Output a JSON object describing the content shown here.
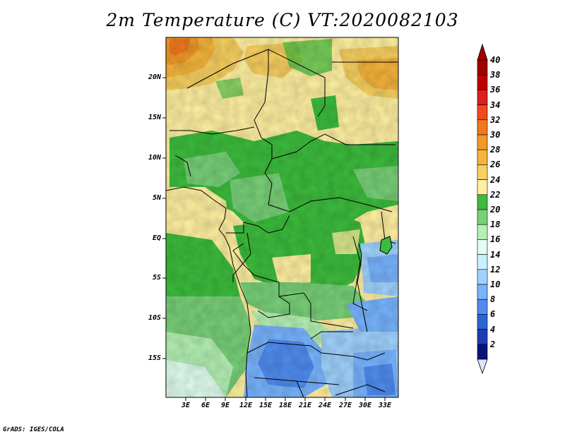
{
  "title": "2m Temperature (C) VT:2020082103",
  "footer": "GrADS: IGES/COLA",
  "map": {
    "lat_labels": [
      "20N",
      "15N",
      "10N",
      "5N",
      "EQ",
      "5S",
      "10S",
      "15S"
    ],
    "lon_labels": [
      "3E",
      "6E",
      "9E",
      "12E",
      "15E",
      "18E",
      "21E",
      "24E",
      "27E",
      "30E",
      "33E"
    ]
  },
  "colorbar": {
    "labels": [
      "40",
      "38",
      "36",
      "34",
      "32",
      "30",
      "28",
      "26",
      "24",
      "22",
      "20",
      "18",
      "16",
      "14",
      "12",
      "10",
      "8",
      "6",
      "4",
      "2"
    ],
    "colors": [
      "#a00000",
      "#c00000",
      "#e01e1e",
      "#f04b1e",
      "#f0781e",
      "#f09a28",
      "#f5b43c",
      "#f8d060",
      "#fff0a0",
      "#3cbc3c",
      "#78d078",
      "#b4f0b4",
      "#e1fff0",
      "#c8f0ff",
      "#a0d2ff",
      "#78b4ff",
      "#508cf0",
      "#2864d2",
      "#1e3cb4",
      "#0a1478"
    ],
    "over_color": "#a00000",
    "under_color": "#e1e1fa"
  }
}
